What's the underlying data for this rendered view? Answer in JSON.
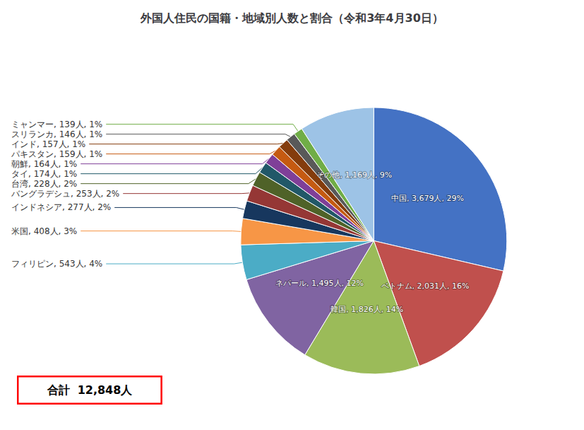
{
  "chart_data": {
    "type": "pie",
    "title": "外国人住民の国籍・地域別人数と割合（令和3年4月30日）",
    "categories": [
      "中国",
      "ベトナム",
      "韓国",
      "ネパール",
      "フィリピン",
      "米国",
      "インドネシア",
      "バングラデシュ",
      "台湾",
      "タイ",
      "朝鮮",
      "パキスタン",
      "インド",
      "スリランカ",
      "ミャンマー",
      "その他"
    ],
    "values": [
      3679,
      2031,
      1826,
      1495,
      543,
      408,
      277,
      253,
      228,
      174,
      164,
      159,
      157,
      146,
      139,
      1169
    ],
    "value_labels": [
      "中国, 3,679人, 29%",
      "ベトナム, 2,031人, 16%",
      "韓国, 1,826人, 14%",
      "ネパール, 1,495人, 12%",
      "フィリピン, 543人, 4%",
      "米国, 408人, 3%",
      "インドネシア, 277人, 2%",
      "バングラデシュ, 253人, 2%",
      "台湾, 228人, 2%",
      "タイ, 174人, 1%",
      "朝鮮, 164人, 1%",
      "パキスタン, 159人, 1%",
      "インド, 157人, 1%",
      "スリランカ, 146人, 1%",
      "ミャンマー, 139人, 1%",
      "その他, 1,169人, 9%"
    ],
    "colors": [
      "#4472C4",
      "#C0504D",
      "#9BBB59",
      "#8064A2",
      "#4BACC6",
      "#F79646",
      "#17375E",
      "#953735",
      "#4F6228",
      "#215868",
      "#7F3F98",
      "#C55A11",
      "#843C0C",
      "#595959",
      "#70AD47",
      "#9DC3E6"
    ],
    "data_labels": true,
    "annotations": [
      {
        "text": "合計  12,848人",
        "color": "red"
      }
    ]
  }
}
